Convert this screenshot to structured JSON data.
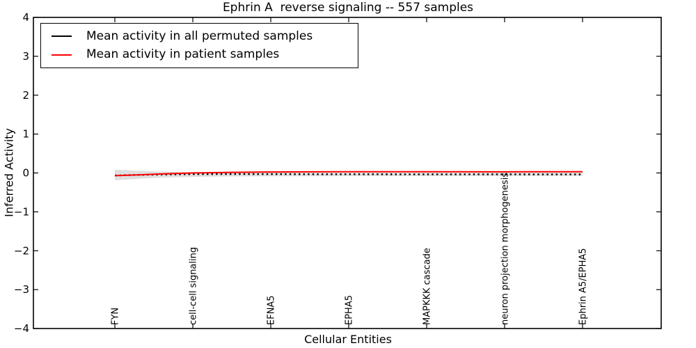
{
  "figure": {
    "title": "Ephrin A  reverse signaling -- 557 samples",
    "xlabel": "Cellular Entities",
    "ylabel": "Inferred Activity"
  },
  "legend": {
    "position": "upper left",
    "entries": [
      {
        "label": "Mean activity in all permuted samples",
        "color": "#000000"
      },
      {
        "label": "Mean activity in patient samples",
        "color": "#ff0000"
      }
    ]
  },
  "chart_data": {
    "type": "line",
    "title": "Ephrin A  reverse signaling -- 557 samples",
    "xlabel": "Cellular Entities",
    "ylabel": "Inferred Activity",
    "grid": false,
    "legend_position": "upper left",
    "ylim": [
      -4,
      4
    ],
    "yticks": [
      4,
      3,
      2,
      1,
      0,
      -1,
      -2,
      -3,
      -4
    ],
    "ytick_labels": [
      "4",
      "3",
      "2",
      "1",
      "0",
      "−1",
      "−2",
      "−3",
      "−4"
    ],
    "xlim": [
      -1.045,
      7.009
    ],
    "categories": [
      "FYN",
      "cell-cell signaling",
      "EFNA5",
      "EPHA5",
      "MAPKKK cascade",
      "neuron projection morphogenesis",
      "Ephrin A5/EPHA5"
    ],
    "band": {
      "name": "permuted-sample-range",
      "color": "#c4c4c4",
      "opacity": 0.55,
      "x": [
        0,
        0.3,
        0.6,
        1,
        1.5,
        2,
        3,
        4,
        5,
        6
      ],
      "upper": [
        0.085,
        0.055,
        0.035,
        0.02,
        0.012,
        0.008,
        0.005,
        0.005,
        0.008,
        0.01
      ],
      "lower": [
        -0.19,
        -0.15,
        -0.12,
        -0.1,
        -0.09,
        -0.085,
        -0.08,
        -0.08,
        -0.08,
        -0.075
      ]
    },
    "series": [
      {
        "name": "Mean activity in all permuted samples",
        "color": "#000000",
        "line_style": "dotted",
        "x": [
          0,
          0.3,
          0.6,
          1.0,
          1.5,
          2,
          2.5,
          3,
          4,
          5,
          6
        ],
        "y": [
          -0.065,
          -0.05,
          -0.04,
          -0.03,
          -0.028,
          -0.03,
          -0.032,
          -0.032,
          -0.035,
          -0.035,
          -0.038
        ]
      },
      {
        "name": "Mean activity in patient samples",
        "color": "#ff0000",
        "line_style": "solid",
        "x": [
          0,
          0.3,
          0.6,
          1.0,
          1.5,
          2,
          2.5,
          3,
          4,
          5,
          6
        ],
        "y": [
          -0.07,
          -0.05,
          -0.025,
          0.0,
          0.015,
          0.025,
          0.03,
          0.032,
          0.032,
          0.03,
          0.032
        ]
      }
    ]
  }
}
